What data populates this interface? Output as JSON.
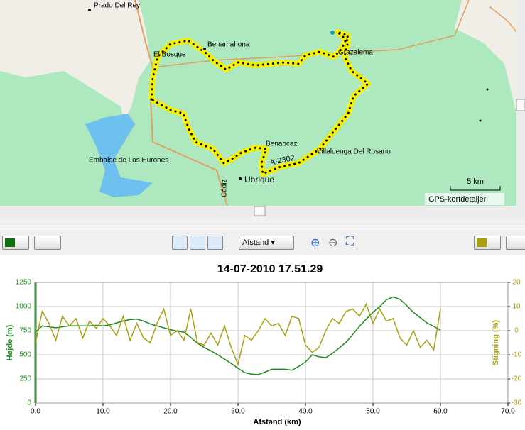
{
  "map": {
    "labels": [
      "Prado Del Rey",
      "Benamahona",
      "El Bosque",
      "Grazalema",
      "Embalse de Los Hurones",
      "Benaocaz",
      "A-2302",
      "Villaluenga Del Rosario",
      "Ubrique",
      "Cádiz"
    ],
    "scale": "5 km",
    "attribution": "GPS-kortdetaljer"
  },
  "toolbar": {
    "x_axis_select": "Afstand"
  },
  "chart_data": {
    "type": "line",
    "title": "14-07-2010 17.51.29",
    "xlabel": "Afstand (km)",
    "ylabel": "Højde (m)",
    "y2label": "Stigning (%)",
    "x": [
      0,
      1,
      2,
      3,
      4,
      5,
      6,
      7,
      8,
      9,
      10,
      11,
      12,
      13,
      14,
      15,
      16,
      17,
      18,
      19,
      20,
      21,
      22,
      23,
      24,
      25,
      26,
      27,
      28,
      29,
      30,
      31,
      32,
      33,
      34,
      35,
      36,
      37,
      38,
      39,
      40,
      41,
      42,
      43,
      44,
      45,
      46,
      47,
      48,
      49,
      50,
      51,
      52,
      53,
      54,
      55,
      56,
      57,
      58,
      59,
      60
    ],
    "xlim": [
      0,
      70
    ],
    "xticks": [
      {
        "value": 0,
        "label": "0.0"
      },
      {
        "value": 10,
        "label": "10.0"
      },
      {
        "value": 20,
        "label": "20.0"
      },
      {
        "value": 30,
        "label": "30.0"
      },
      {
        "value": 40,
        "label": "40.0"
      },
      {
        "value": 50,
        "label": "50.0"
      },
      {
        "value": 60,
        "label": "60.0"
      },
      {
        "value": 70,
        "label": "70.0"
      }
    ],
    "ylim": [
      0,
      1250
    ],
    "yticks": [
      0,
      250,
      500,
      750,
      1000,
      1250
    ],
    "y2lim": [
      -30,
      20
    ],
    "y2ticks": [
      -30,
      -20,
      -10,
      0,
      10,
      20
    ],
    "grid": true,
    "series": [
      {
        "color": "#1a8a1a",
        "axis": "y",
        "values": [
          735,
          800,
          790,
          780,
          790,
          800,
          800,
          800,
          800,
          805,
          800,
          810,
          830,
          850,
          865,
          870,
          850,
          820,
          800,
          780,
          760,
          745,
          735,
          680,
          620,
          575,
          540,
          500,
          455,
          410,
          360,
          315,
          300,
          295,
          320,
          350,
          350,
          350,
          340,
          380,
          425,
          500,
          480,
          470,
          515,
          570,
          630,
          710,
          795,
          870,
          940,
          1000,
          1070,
          1100,
          1075,
          1010,
          940,
          885,
          830,
          795,
          757
        ]
      },
      {
        "color": "#a8a010",
        "axis": "y2",
        "values": [
          -5,
          8,
          3,
          -4,
          6,
          2,
          5,
          -3,
          4,
          1,
          5,
          2,
          -2,
          6,
          -4,
          3,
          -3,
          -5,
          3,
          9,
          -2,
          0,
          -4,
          9,
          -5,
          -6,
          -1,
          -6,
          2,
          -7,
          -14,
          -2,
          -4,
          0,
          5,
          2,
          3,
          -2,
          6,
          5,
          -6,
          -9,
          -7,
          0,
          5,
          3,
          8,
          9,
          6,
          11,
          3,
          9,
          4,
          5,
          -3,
          -6,
          0,
          -7,
          -4,
          -8,
          9
        ]
      }
    ]
  }
}
